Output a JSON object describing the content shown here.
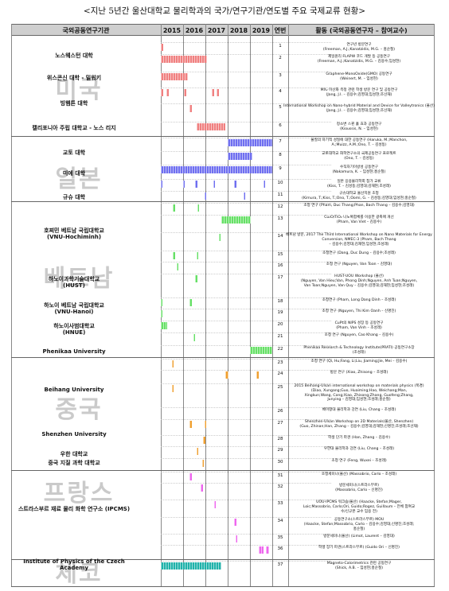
{
  "title": "<지난 5년간 울산대학교 물리학과의 국가/연구기관/연도별 주요 국제교류 현황>",
  "header": {
    "org": "국외공동연구기관",
    "years": [
      "2015",
      "2016",
      "2017",
      "2018",
      "2019"
    ],
    "num": "연번",
    "activity": "활동 (국외공동연구자 – 참여교수)"
  },
  "colors": {
    "usa": "#f08080",
    "japan": "#6f6ff0",
    "vietnam": "#66e066",
    "china": "#f0a030",
    "france": "#ee66ee",
    "czech": "#20b2aa"
  },
  "countries": [
    "미국",
    "일본",
    "베트남",
    "중국",
    "프랑스",
    "체코"
  ],
  "orgs": [
    {
      "label": "노스웨스턴 대학"
    },
    {
      "label": "위스콘신 대학 - 밀워키"
    },
    {
      "label": "빙햄튼 대학"
    },
    {
      "label": "캘리포니아 주립 대학교 - 노스 리지"
    },
    {
      "label": "교토 대학"
    },
    {
      "label": "미에 대학"
    },
    {
      "label": "규슈 대학"
    },
    {
      "label": "호찌민 베트남 국립대학교",
      "sub": "(VNU-Hochiminh)"
    },
    {
      "label": "하노이과학기술대학교",
      "sub": "(HUST)"
    },
    {
      "label": "하노이 베트남 국립대학교",
      "sub": "(VNU-Hanoi)"
    },
    {
      "label": "하노이사범대학교",
      "sub": "(HNUE)"
    },
    {
      "label": "Phenikaa University"
    },
    {
      "label": "Beihang University"
    },
    {
      "label": "Shenzhen University"
    },
    {
      "label": "우한 대학교"
    },
    {
      "label": "중국 지질 과학 대학교"
    },
    {
      "label": "스트라스부르 재료 물리 화학 연구소 (IPCMS)"
    },
    {
      "label": "Institute of Physics of the Czech",
      "sub": "Academy"
    }
  ],
  "activities": [
    {
      "n": "1",
      "lines": [
        "연구년 방문연구",
        "(Freeman, A.J.;Kanatzidis, M.G. – 홍순철)"
      ]
    },
    {
      "n": "2",
      "lines": [
        "제일원리 FLAPW 코드 개발 등 공동연구",
        "(Freeman, A.J.;Kanatzidis, M.G. – 김용수;임성현)"
      ]
    },
    {
      "n": "3",
      "lines": [
        "Graphene-MonoOxide(GMO) 공동연구",
        "(Weinert, M. – 임성현)"
      ]
    },
    {
      "n": "4",
      "lines": [
        "MX₂ 이산화 측정 관련 학생 방문 연구 및 공동연구",
        "(Jang, J.I. – 김용수;김영대;임성현;조선재)"
      ]
    },
    {
      "n": "5",
      "lines": [
        "International Workshop on Nano-hybrid Material and Device for Valleytronics (울산)",
        "(Jang, J.I. – 김용수;김영대;임성현;조선재)"
      ]
    },
    {
      "n": "6",
      "lines": [
        "정소변 스핀 홀 효과 공동연구",
        "(Kioussis, N. – 임성현)"
      ]
    },
    {
      "n": "7",
      "lines": [
        "물질의 자기적 성질에 대한 공동연구 (Haruka, M.;Manchon,",
        "A.;Muizz, A.M.;Ono, T. – 김성동)"
      ]
    },
    {
      "n": "8",
      "lines": [
        "교토대학교 화학연구소의 국제공동연구 프로젝트",
        "(Ono, T. – 김성동)"
      ]
    },
    {
      "n": "9",
      "lines": [
        "수직자기이방성 공동연구",
        "(Nakamura, K. – 임성현;홍순철)"
      ]
    },
    {
      "n": "10",
      "lines": [
        "일본 응용물리학회 참가 교류",
        "(Kiss, T. – 김성동;김영대;김재현;조성래)"
      ]
    },
    {
      "n": "11",
      "lines": [
        "규슈대학교 울산지원 초청",
        "(Kimura, T.;Kiss, T.;Ono, T.;Oomi, G. – 김성동;김영대;임성현;홍순철)"
      ]
    },
    {
      "n": "12",
      "lines": [
        "초청 연구 (Pham, Duc Thang;Phan, Bach Thang – 김용수;김영대)"
      ]
    },
    {
      "n": "13",
      "lines": [
        "Cu₂O/TiO₂ 나노복합체를 이용한 광촉매 개선",
        "(Pham, Van Viet – 김용수)"
      ]
    },
    {
      "n": "14",
      "lines": [
        "베트남 방문, 2017 The Third International Workshop on Nano Materials for Energy Conversion, NMEC-3 (Pham, Bach Thang",
        "– 김용수;김영대;김재현;임성현;조성래)"
      ]
    },
    {
      "n": "15",
      "lines": [
        "초청연구 (Dang, Duc Dung – 김용수;조성래)"
      ]
    },
    {
      "n": "16",
      "lines": [
        "초청 연구 (Nguyen, Van Toan – 김영대)"
      ]
    },
    {
      "n": "17",
      "lines": [
        "HUST-UOU Workshop (울산)",
        "(Nguyen, Van Hieu;Van, Phong Dinh;Nguyen, Anh Tuan;Nguyen,",
        "Van Toan;Nguyen, Van Quy – 김용수;김영대;김재현;임성현;조성래)"
      ]
    },
    {
      "n": "18",
      "lines": [
        "초청연구 (Pham, Long Dang Dinh – 조성래)"
      ]
    },
    {
      "n": "19",
      "lines": [
        "초청 연구 (Nguyen, Thi Kim Oanh – 신명진)"
      ]
    },
    {
      "n": "20",
      "lines": [
        "CuPt의 NIPS 성장 등 공동연구",
        "(Pham, Van Vinh – 조성래)"
      ]
    },
    {
      "n": "21",
      "lines": [
        "초청 연구 (Nguyen, Cao Khang – 김용수)"
      ]
    },
    {
      "n": "22",
      "lines": [
        "Phenikaa Research & Technology Institute(PRATI) 공동연구소장",
        "(조성래)"
      ]
    },
    {
      "n": "23",
      "lines": [
        "초청 연구 (Qi, Hu;Fang, Li;Liu, Jiaming;Jie, Mei – 김용수)"
      ]
    },
    {
      "n": "24",
      "lines": [
        "방문 연구 (Xiao, Zhisong – 조성래)"
      ]
    },
    {
      "n": "25",
      "lines": [
        "2015 Beihang-Ulsan international workshop on materials physics (북경)",
        "(Diao, Xungang;Guo, Huaiming;Hao, Weichang;Man,",
        "Xingkun;Wang, Cong;Xiao, Zhisong;Zhang, Guofeng;Zhang,",
        "Junying – 김영대;임성현;조성래;홍순철)"
      ]
    },
    {
      "n": "26",
      "lines": [
        "베이항대 물리학과 강연 (Liu, Chang – 조성래)"
      ]
    },
    {
      "n": "27",
      "lines": [
        "Shenzhen-Ulsan Workshop on 2D Materials(울산, Shenzhen)",
        "(Guo, Zhinan;Han, Zhang – 김용수;김영대;김재현;신명진;조성래;조선재)"
      ]
    },
    {
      "n": "28",
      "lines": [
        "학생 단기 파견 (Han, Zhang – 김용수)"
      ]
    },
    {
      "n": "29",
      "lines": [
        "우한대 물리학과 강연 (Liu, Chang – 조성래)"
      ]
    },
    {
      "n": "30",
      "lines": [
        "초청 연구 (Feng, Wuxei – 조성래)"
      ]
    },
    {
      "n": "31",
      "lines": [
        "초청세미나(울산) (Massobrio, Carlo – 조성래)"
      ]
    },
    {
      "n": "32",
      "lines": [
        "방문세미나(스트라스부르)",
        "(Massobrio, Carlo – 신명진)"
      ]
    },
    {
      "n": "33",
      "lines": [
        "UOU-IPCMS 워크숍(울산) (Haacke, Stefan;Mager,",
        "Loic;Massobrio, Carlo;Ori, Guido;Rogez, Guillaum – 전체 참여교",
        "수/신규본 교수 임용 전)"
      ]
    },
    {
      "n": "34",
      "lines": [
        "공동연구소(스트라스부르) MOU",
        "(Haacke, Stefan;Massobrio, Carlo – 김용수;김영대;신명진;조성래;",
        "홍순철)"
      ]
    },
    {
      "n": "35",
      "lines": [
        "방문세미나(울산) (Limot, Laurent – 김영대)"
      ]
    },
    {
      "n": "36",
      "lines": [
        "학생 장기 파견(스트라스부르) (Guido Ori – 신명진)"
      ]
    },
    {
      "n": "37",
      "lines": [
        "Magneto-Calorimetrics 관련 공동연구",
        "(Shick, A.B. – 임성현;홍순철)"
      ]
    }
  ],
  "timeline": [
    {
      "n": "1",
      "c": "usa",
      "s": 2015.0,
      "e": 2015.1
    },
    {
      "n": "2",
      "c": "usa",
      "s": 2015.0,
      "e": 2017.08
    },
    {
      "n": "3",
      "c": "usa",
      "s": 2015.0,
      "e": 2016.2
    },
    {
      "n": "4",
      "c": "usa",
      "s": 2015.0,
      "e": 2015.1
    },
    {
      "n": "4",
      "c": "usa",
      "s": 2015.25,
      "e": 2015.35
    },
    {
      "n": "4",
      "c": "usa",
      "s": 2016.05,
      "e": 2016.15
    },
    {
      "n": "4",
      "c": "usa",
      "s": 2017.3,
      "e": 2017.4
    },
    {
      "n": "4",
      "c": "usa",
      "s": 2017.5,
      "e": 2017.6
    },
    {
      "n": "5",
      "c": "usa",
      "s": 2016.3,
      "e": 2016.4
    },
    {
      "n": "6",
      "c": "usa",
      "s": 2016.6,
      "e": 2017.9
    },
    {
      "n": "7",
      "c": "japan",
      "s": 2018.0,
      "e": 2020.0
    },
    {
      "n": "8",
      "c": "japan",
      "s": 2018.0,
      "e": 2019.1
    },
    {
      "n": "9",
      "c": "japan",
      "s": 2015.0,
      "e": 2020.0
    },
    {
      "n": "10",
      "c": "japan",
      "s": 2015.0,
      "e": 2015.08
    },
    {
      "n": "10",
      "c": "japan",
      "s": 2016.0,
      "e": 2016.08
    },
    {
      "n": "10",
      "c": "japan",
      "s": 2016.55,
      "e": 2016.63
    },
    {
      "n": "10",
      "c": "japan",
      "s": 2017.35,
      "e": 2017.43
    },
    {
      "n": "10",
      "c": "japan",
      "s": 2018.3,
      "e": 2018.38
    },
    {
      "n": "10",
      "c": "japan",
      "s": 2019.6,
      "e": 2019.68
    },
    {
      "n": "11",
      "c": "japan",
      "s": 2016.95,
      "e": 2017.03
    },
    {
      "n": "11",
      "c": "japan",
      "s": 2018.7,
      "e": 2018.78
    },
    {
      "n": "12",
      "c": "vietnam",
      "s": 2015.55,
      "e": 2015.63
    },
    {
      "n": "12",
      "c": "vietnam",
      "s": 2016.65,
      "e": 2016.73
    },
    {
      "n": "13",
      "c": "vietnam",
      "s": 2017.7,
      "e": 2019.05
    },
    {
      "n": "14",
      "c": "vietnam",
      "s": 2017.6,
      "e": 2017.68
    },
    {
      "n": "15",
      "c": "vietnam",
      "s": 2015.55,
      "e": 2015.63
    },
    {
      "n": "15",
      "c": "vietnam",
      "s": 2016.6,
      "e": 2016.68
    },
    {
      "n": "16",
      "c": "vietnam",
      "s": 2015.7,
      "e": 2015.78
    },
    {
      "n": "17",
      "c": "vietnam",
      "s": 2016.55,
      "e": 2016.63
    },
    {
      "n": "18",
      "c": "vietnam",
      "s": 2015.0,
      "e": 2015.08
    },
    {
      "n": "18",
      "c": "vietnam",
      "s": 2016.3,
      "e": 2016.38
    },
    {
      "n": "19",
      "c": "vietnam",
      "s": 2015.0,
      "e": 2015.08
    },
    {
      "n": "20",
      "c": "vietnam",
      "s": 2015.0,
      "e": 2015.3
    },
    {
      "n": "21",
      "c": "vietnam",
      "s": 2016.45,
      "e": 2016.53
    },
    {
      "n": "22",
      "c": "vietnam",
      "s": 2019.0,
      "e": 2020.0
    },
    {
      "n": "23",
      "c": "china",
      "s": 2015.5,
      "e": 2015.58
    },
    {
      "n": "24",
      "c": "china",
      "s": 2017.9,
      "e": 2018.05
    },
    {
      "n": "24",
      "c": "china",
      "s": 2019.3,
      "e": 2019.4
    },
    {
      "n": "25",
      "c": "china",
      "s": 2015.5,
      "e": 2015.58
    },
    {
      "n": "27",
      "c": "china",
      "s": 2016.3,
      "e": 2016.38
    },
    {
      "n": "27",
      "c": "china",
      "s": 2016.95,
      "e": 2017.03
    },
    {
      "n": "28",
      "c": "china",
      "s": 2016.9,
      "e": 2017.0
    },
    {
      "n": "29",
      "c": "china",
      "s": 2016.6,
      "e": 2016.68
    },
    {
      "n": "30",
      "c": "china",
      "s": 2016.85,
      "e": 2016.93
    },
    {
      "n": "31",
      "c": "france",
      "s": 2016.3,
      "e": 2016.38
    },
    {
      "n": "32",
      "c": "france",
      "s": 2016.8,
      "e": 2016.88
    },
    {
      "n": "33",
      "c": "france",
      "s": 2017.4,
      "e": 2017.48
    },
    {
      "n": "34",
      "c": "france",
      "s": 2018.3,
      "e": 2018.38
    },
    {
      "n": "35",
      "c": "france",
      "s": 2018.35,
      "e": 2018.43
    },
    {
      "n": "36",
      "c": "france",
      "s": 2019.4,
      "e": 2019.6
    },
    {
      "n": "36",
      "c": "france",
      "s": 2019.7,
      "e": 2019.85
    },
    {
      "n": "37",
      "c": "czech",
      "s": 2015.0,
      "e": 2017.7
    }
  ]
}
